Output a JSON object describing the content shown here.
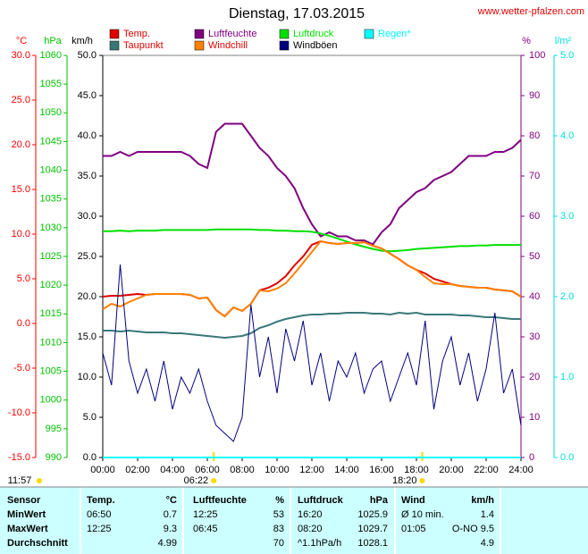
{
  "chart_data": {
    "type": "line",
    "title": "Dienstag, 17.03.2015",
    "source": "www.wetter-pfalzen.com",
    "x": [
      0,
      0.5,
      1,
      1.5,
      2,
      2.5,
      3,
      3.5,
      4,
      4.5,
      5,
      5.5,
      6,
      6.5,
      7,
      7.5,
      8,
      8.5,
      9,
      9.5,
      10,
      10.5,
      11,
      11.5,
      12,
      12.5,
      13,
      13.5,
      14,
      14.5,
      15,
      15.5,
      16,
      16.5,
      17,
      17.5,
      18,
      18.5,
      19,
      19.5,
      20,
      20.5,
      21,
      21.5,
      22,
      22.5,
      23,
      23.5,
      24
    ],
    "xlim": [
      0,
      24
    ],
    "xticks": [
      {
        "value": 0,
        "label": "00:00"
      },
      {
        "value": 2,
        "label": "02:00"
      },
      {
        "value": 4,
        "label": "04:00"
      },
      {
        "value": 6,
        "label": "06:00"
      },
      {
        "value": 8,
        "label": "08:00"
      },
      {
        "value": 10,
        "label": "10:00"
      },
      {
        "value": 12,
        "label": "12:00"
      },
      {
        "value": 14,
        "label": "14:00"
      },
      {
        "value": 16,
        "label": "16:00"
      },
      {
        "value": 18,
        "label": "18:00"
      },
      {
        "value": 20,
        "label": "20:00"
      },
      {
        "value": 22,
        "label": "22:00"
      },
      {
        "value": 24,
        "label": "24:00"
      }
    ],
    "axes": {
      "temp": {
        "label": "°C",
        "color": "#ff0000",
        "ylim": [
          -15,
          30
        ],
        "yticks": [
          {
            "value": -15,
            "label": "-15.0"
          },
          {
            "value": -10,
            "label": "-10.0"
          },
          {
            "value": -5,
            "label": "-5.0"
          },
          {
            "value": 0,
            "label": "0.0"
          },
          {
            "value": 5,
            "label": "5.0"
          },
          {
            "value": 10,
            "label": "10.0"
          },
          {
            "value": 15,
            "label": "15.0"
          },
          {
            "value": 20,
            "label": "20.0"
          },
          {
            "value": 25,
            "label": "25.0"
          },
          {
            "value": 30,
            "label": "30.0"
          }
        ]
      },
      "pressure": {
        "label": "hPa",
        "color": "#00c000",
        "ylim": [
          990,
          1060
        ],
        "yticks": [
          990,
          995,
          1000,
          1005,
          1010,
          1015,
          1020,
          1025,
          1030,
          1035,
          1040,
          1045,
          1050,
          1055,
          1060
        ]
      },
      "wind": {
        "label": "km/h",
        "color": "#000000",
        "ylim": [
          0,
          50
        ],
        "yticks": [
          {
            "value": 0,
            "label": "0.0"
          },
          {
            "value": 5,
            "label": "5.0"
          },
          {
            "value": 10,
            "label": "10.0"
          },
          {
            "value": 15,
            "label": "15.0"
          },
          {
            "value": 20,
            "label": "20.0"
          },
          {
            "value": 25,
            "label": "25.0"
          },
          {
            "value": 30,
            "label": "30.0"
          },
          {
            "value": 35,
            "label": "35.0"
          },
          {
            "value": 40,
            "label": "40.0"
          },
          {
            "value": 45,
            "label": "45.0"
          },
          {
            "value": 50,
            "label": "50.0"
          }
        ]
      },
      "humidity": {
        "label": "%",
        "color": "#800080",
        "ylim": [
          0,
          100
        ],
        "yticks": [
          0,
          10,
          20,
          30,
          40,
          50,
          60,
          70,
          80,
          90,
          100
        ]
      },
      "rain": {
        "label": "l/m²",
        "color": "#00dddd",
        "ylim": [
          0,
          5
        ],
        "yticks": [
          {
            "value": 0,
            "label": "0.0"
          },
          {
            "value": 1,
            "label": "1.0"
          },
          {
            "value": 2,
            "label": "2.0"
          },
          {
            "value": 3,
            "label": "3.0"
          },
          {
            "value": 4,
            "label": "4.0"
          },
          {
            "value": 5,
            "label": "5.0"
          }
        ]
      }
    },
    "series": [
      {
        "name": "Temp.",
        "color": "#e00000",
        "axis": "temp",
        "values": [
          3.0,
          3.1,
          3.1,
          3.2,
          3.3,
          3.2,
          3.3,
          3.3,
          3.3,
          3.3,
          3.2,
          2.8,
          2.9,
          1.5,
          0.8,
          1.8,
          1.4,
          2.2,
          3.7,
          4.0,
          4.5,
          5.3,
          6.5,
          7.5,
          8.8,
          9.2,
          9.0,
          8.9,
          9.0,
          9.0,
          9.1,
          8.7,
          8.4,
          7.8,
          7.2,
          6.5,
          6.0,
          5.6,
          5.0,
          4.7,
          4.4,
          4.2,
          4.1,
          4.0,
          4.0,
          3.8,
          3.7,
          3.6,
          3.0
        ]
      },
      {
        "name": "Luftfeuchte",
        "color": "#800080",
        "axis": "humidity",
        "values": [
          75,
          75,
          76,
          75,
          76,
          76,
          76,
          76,
          76,
          76,
          75,
          73,
          72,
          81,
          83,
          83,
          83,
          80,
          77,
          75,
          72,
          70,
          67,
          62,
          58,
          55,
          56,
          55,
          55,
          54,
          54,
          53,
          56,
          58,
          62,
          64,
          66,
          67,
          69,
          70,
          71,
          73,
          75,
          75,
          75,
          76,
          76,
          77,
          79
        ]
      },
      {
        "name": "Luftdruck",
        "color": "#00e000",
        "axis": "pressure",
        "values": [
          1029.4,
          1029.4,
          1029.5,
          1029.4,
          1029.5,
          1029.5,
          1029.5,
          1029.6,
          1029.6,
          1029.6,
          1029.6,
          1029.6,
          1029.6,
          1029.7,
          1029.7,
          1029.7,
          1029.7,
          1029.7,
          1029.6,
          1029.6,
          1029.5,
          1029.5,
          1029.4,
          1029.4,
          1029.3,
          1029.0,
          1028.6,
          1028.1,
          1027.6,
          1027.1,
          1026.7,
          1026.3,
          1026.0,
          1025.9,
          1026.0,
          1026.1,
          1026.3,
          1026.4,
          1026.5,
          1026.6,
          1026.7,
          1026.8,
          1026.8,
          1026.9,
          1026.9,
          1027.0,
          1027.0,
          1027.0,
          1027.0
        ]
      },
      {
        "name": "Regen*",
        "color": "#00ffff",
        "axis": "rain",
        "values": [
          0,
          0,
          0,
          0,
          0,
          0,
          0,
          0,
          0,
          0,
          0,
          0,
          0,
          0,
          0,
          0,
          0,
          0,
          0,
          0,
          0,
          0,
          0,
          0,
          0,
          0,
          0,
          0,
          0,
          0,
          0,
          0,
          0,
          0,
          0,
          0,
          0,
          0,
          0,
          0,
          0,
          0,
          0,
          0,
          0,
          0,
          0,
          0,
          0
        ]
      },
      {
        "name": "Taupunkt",
        "color": "#3a7878",
        "axis": "temp",
        "values": [
          -0.8,
          -0.8,
          -0.9,
          -0.8,
          -0.9,
          -1.0,
          -1.0,
          -1.0,
          -1.1,
          -1.1,
          -1.2,
          -1.3,
          -1.4,
          -1.5,
          -1.6,
          -1.5,
          -1.4,
          -1.1,
          -0.5,
          -0.2,
          0.2,
          0.5,
          0.7,
          0.9,
          1.0,
          1.0,
          1.1,
          1.1,
          1.2,
          1.2,
          1.2,
          1.1,
          1.1,
          1.0,
          1.2,
          1.1,
          1.2,
          1.0,
          1.0,
          1.0,
          1.0,
          0.9,
          0.9,
          0.8,
          0.7,
          0.7,
          0.6,
          0.5,
          0.5
        ]
      },
      {
        "name": "Windchill",
        "color": "#ff8000",
        "axis": "temp",
        "values": [
          1.6,
          2.2,
          1.9,
          2.4,
          2.8,
          3.2,
          3.3,
          3.3,
          3.3,
          3.3,
          3.2,
          2.8,
          2.9,
          1.5,
          0.8,
          1.8,
          1.4,
          2.2,
          3.7,
          3.6,
          3.9,
          4.5,
          5.6,
          6.8,
          8.0,
          9.2,
          9.0,
          8.9,
          9.0,
          9.0,
          9.1,
          8.7,
          8.4,
          7.8,
          7.2,
          6.5,
          6.0,
          5.2,
          4.5,
          4.4,
          4.4,
          4.2,
          4.1,
          4.0,
          4.0,
          3.8,
          3.7,
          3.6,
          3.0
        ]
      },
      {
        "name": "Windböen",
        "color": "#000080",
        "axis": "wind",
        "values": [
          13,
          9,
          24,
          12,
          8,
          11,
          7,
          12,
          6,
          10,
          8,
          11,
          7,
          4,
          3,
          2,
          5,
          19,
          10,
          15,
          8,
          16,
          12,
          17,
          9,
          13,
          7,
          12,
          10,
          13,
          8,
          11,
          12,
          7,
          10,
          13,
          9,
          17,
          6,
          12,
          15,
          9,
          13,
          7,
          11,
          18,
          8,
          11,
          4
        ]
      }
    ],
    "annotations": [
      {
        "label": "06:22",
        "value": 6.367
      },
      {
        "label": "18:20",
        "value": 18.333
      }
    ],
    "noon": "11:57"
  },
  "table": {
    "header": [
      "Sensor",
      "Temp.",
      "°C",
      "Luftfeuchte",
      "%",
      "Luftdruck",
      "hPa",
      "Wind",
      "km/h"
    ],
    "rows": [
      [
        "MinWert",
        "06:50",
        "0.7",
        "12:25",
        "53",
        "16:20",
        "1025.9",
        "Ø 10 min.",
        "1.4"
      ],
      [
        "MaxWert",
        "12:25",
        "9.3",
        "06:45",
        "83",
        "08:20",
        "1029.7",
        "01:05",
        "O-NO 9.5"
      ],
      [
        "Durchschnitt",
        null,
        "4.99",
        null,
        "70",
        "^1.1hPa/h",
        "1028.1",
        null,
        "4.9"
      ]
    ]
  }
}
